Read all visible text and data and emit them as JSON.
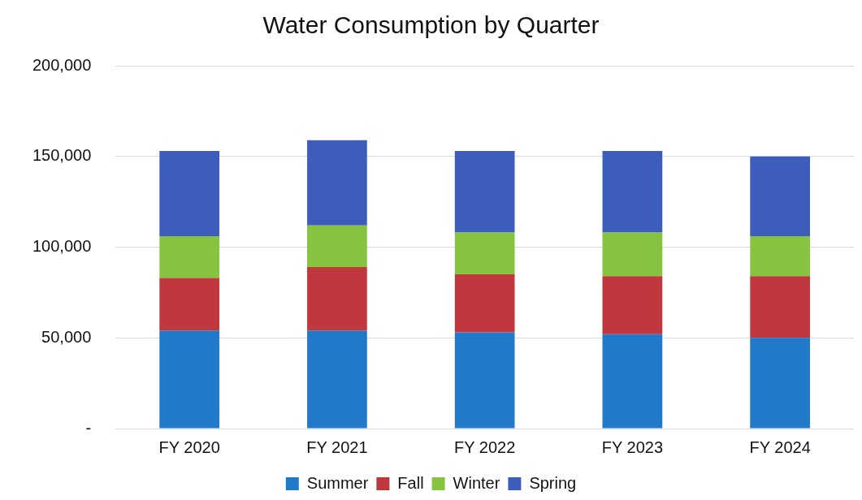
{
  "chart_data": {
    "type": "bar",
    "title": "Water Consumption by Quarter",
    "categories": [
      "FY 2020",
      "FY 2021",
      "FY 2022",
      "FY 2023",
      "FY 2024"
    ],
    "stacked": true,
    "series": [
      {
        "name": "Summer",
        "color": "#2179c9",
        "values": [
          54000,
          54000,
          53000,
          52000,
          50000
        ]
      },
      {
        "name": "Fall",
        "color": "#c0383e",
        "values": [
          29000,
          35000,
          32000,
          32000,
          34000
        ]
      },
      {
        "name": "Winter",
        "color": "#86c440",
        "values": [
          23000,
          23000,
          23000,
          24000,
          22000
        ]
      },
      {
        "name": "Spring",
        "color": "#3d5dbd",
        "values": [
          47000,
          47000,
          45000,
          45000,
          44000
        ]
      }
    ],
    "ylim": [
      0,
      200000
    ],
    "yticks": [
      {
        "value": 0,
        "label": "-"
      },
      {
        "value": 50000,
        "label": "50,000"
      },
      {
        "value": 100000,
        "label": "100,000"
      },
      {
        "value": 150000,
        "label": "150,000"
      },
      {
        "value": 200000,
        "label": "200,000"
      }
    ],
    "grid": "y",
    "legend": "bottom"
  }
}
